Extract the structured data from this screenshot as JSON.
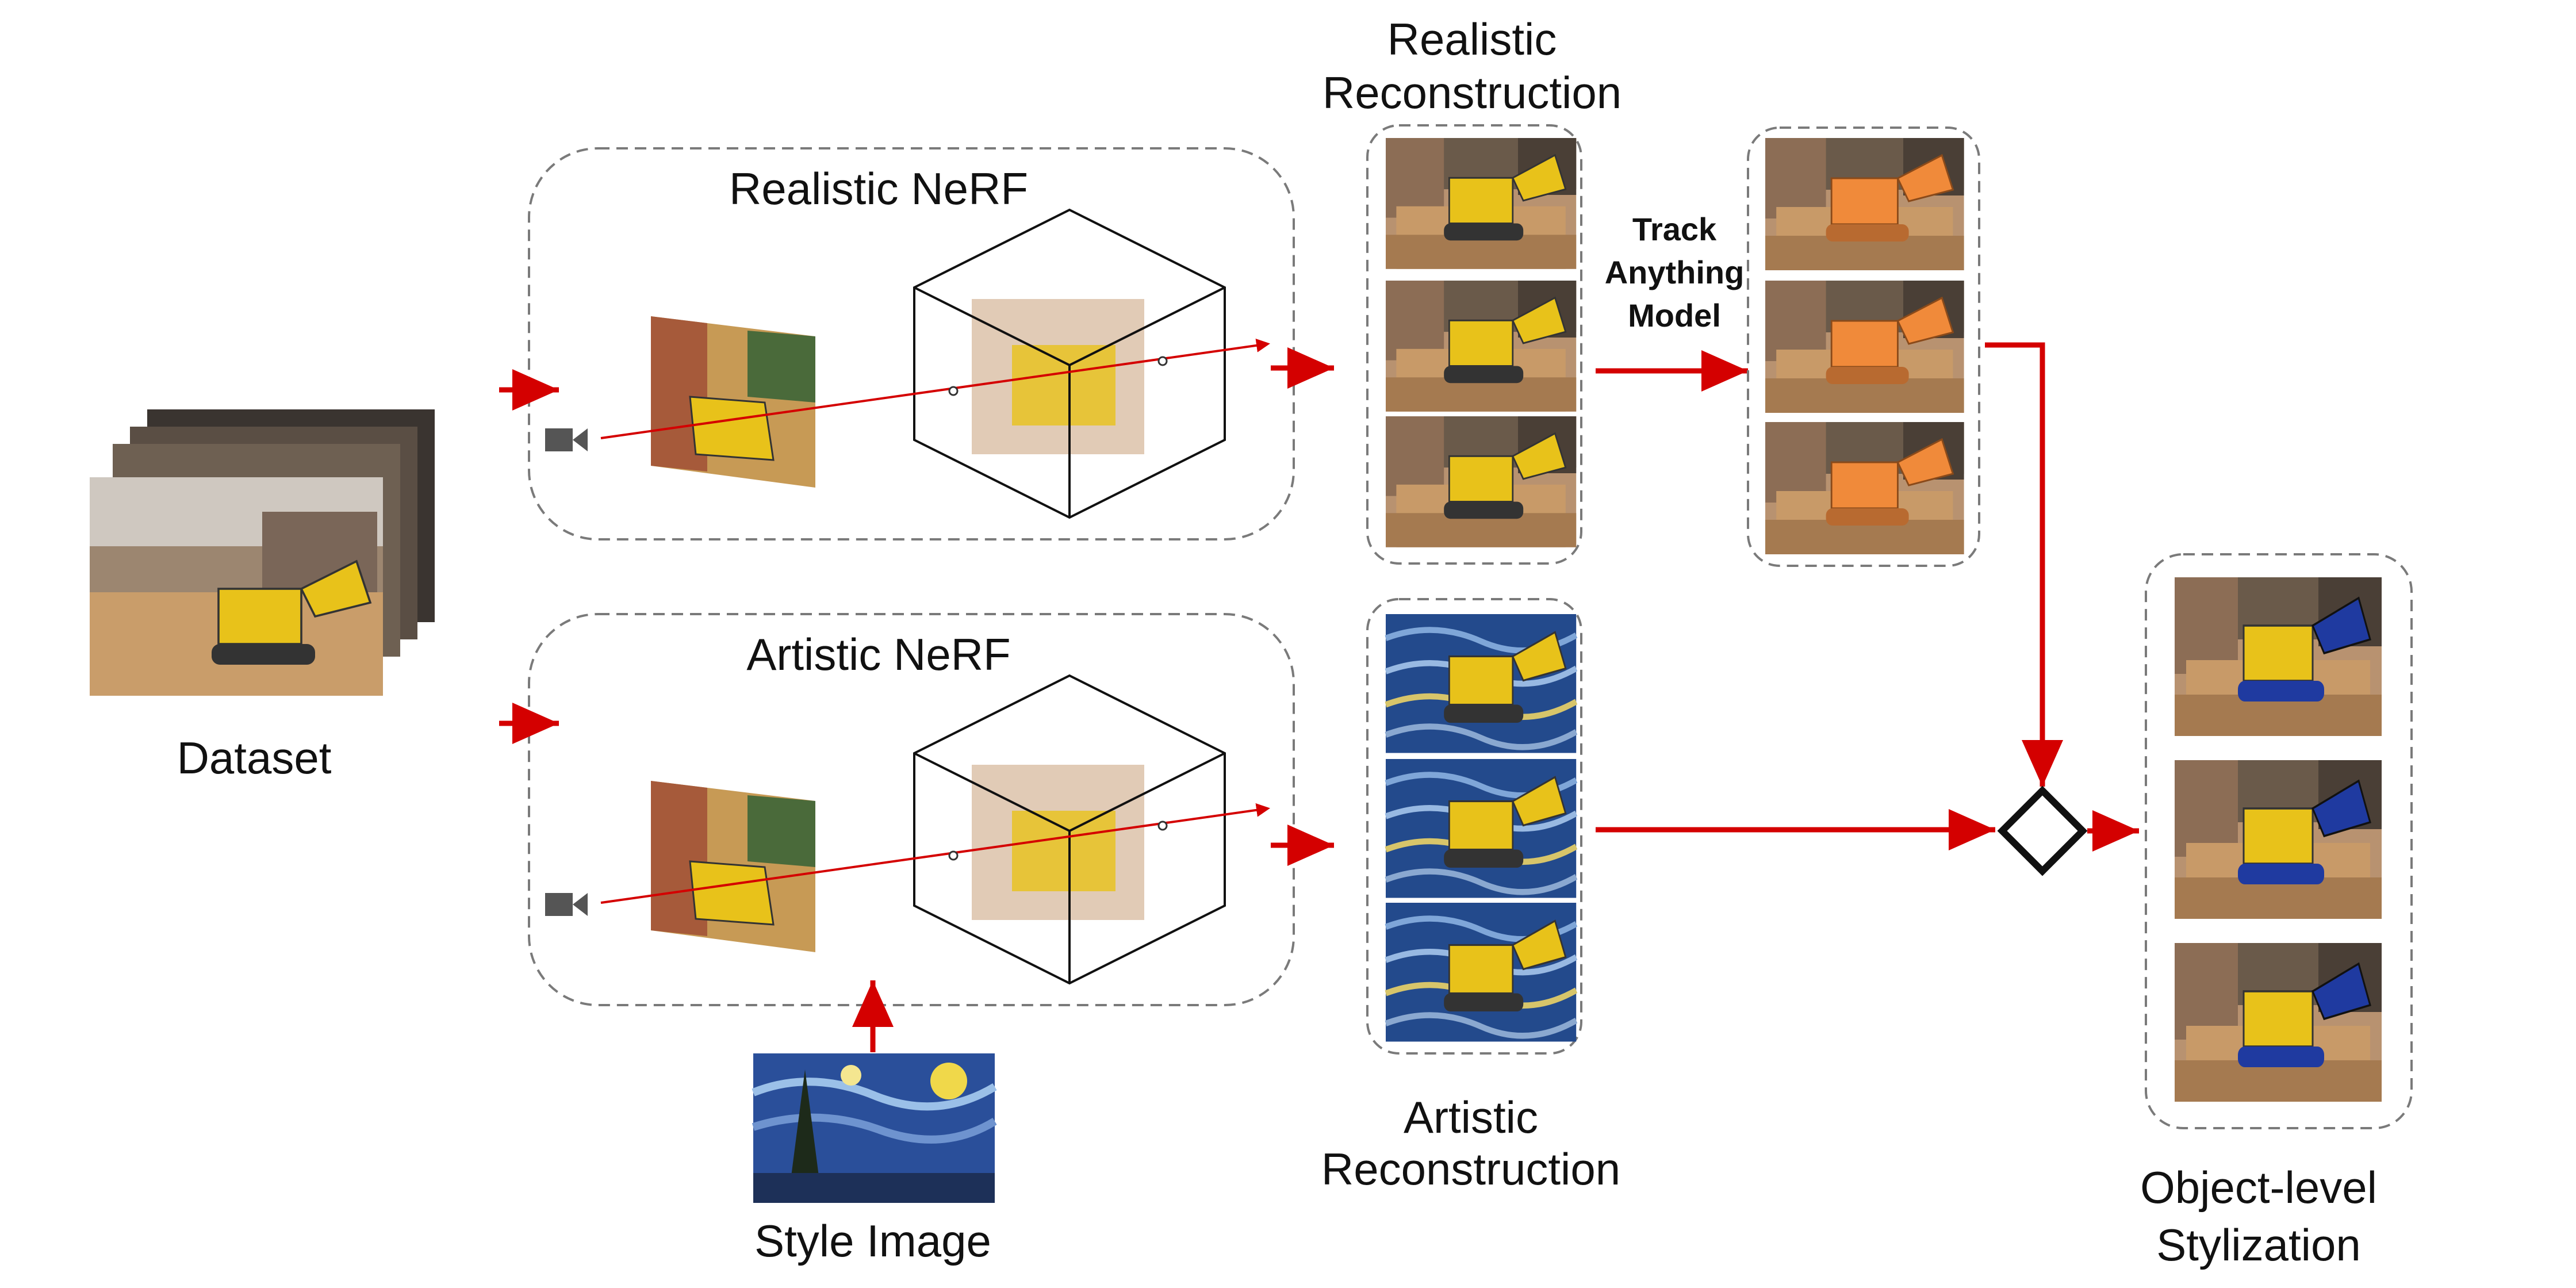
{
  "labels": {
    "dataset": "Dataset",
    "realistic_nerf": "Realistic NeRF",
    "artistic_nerf": "Artistic NeRF",
    "realistic_recon_line1": "Realistic",
    "realistic_recon_line2": "Reconstruction",
    "artistic_recon_line1": "Artistic",
    "artistic_recon_line2": "Reconstruction",
    "tam_line1": "Track",
    "tam_line2": "Anything",
    "tam_line3": "Model",
    "style_image": "Style Image",
    "object_level_line1": "Object-level",
    "object_level_line2": "Stylization"
  },
  "colors": {
    "arrow": "#d40000",
    "dashed_border": "#7a7a7a",
    "text": "#111111",
    "toy_yellow": "#e8c21a",
    "toy_orange": "#f08a3a",
    "toy_blue": "#1f3aa0",
    "van_gogh_sky": "#2a4f9a"
  },
  "icons": [
    "camera-icon",
    "merge-diamond-icon"
  ]
}
